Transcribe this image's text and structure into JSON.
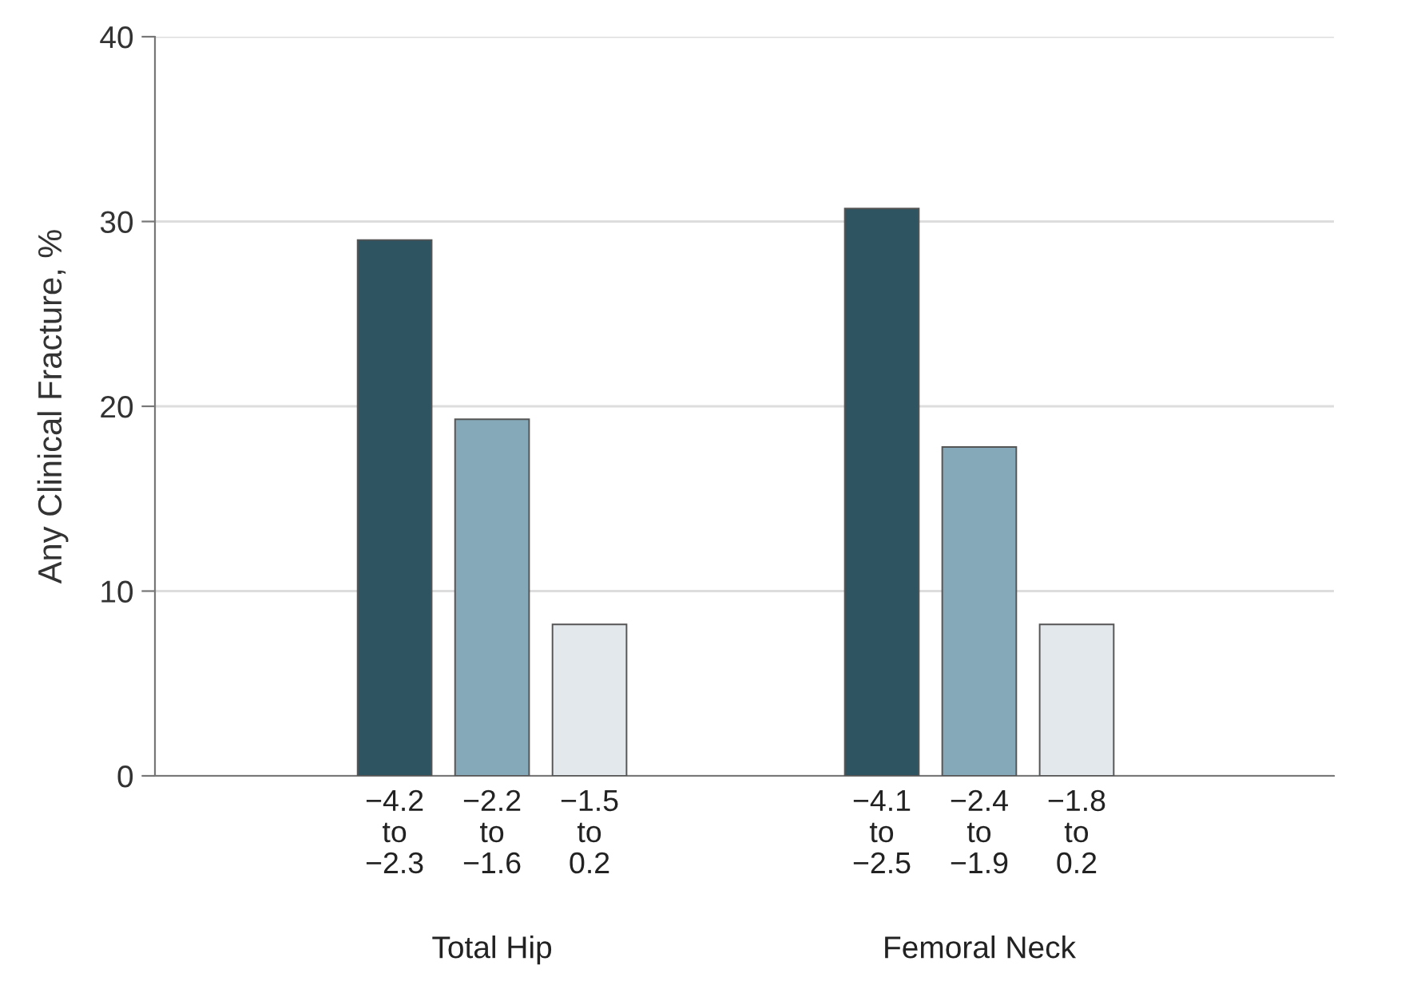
{
  "chart_data": {
    "type": "bar",
    "ylabel": "Any Clinical Fracture, %",
    "categories": [
      null,
      null,
      "−4.2\nto\n−2.3",
      "−2.2\nto\n−1.6",
      "−1.5\nto\n0.2",
      null,
      null,
      "−4.1\nto\n−2.5",
      "−2.4\nto\n−1.9",
      "−1.8\nto\n0.2",
      null,
      null
    ],
    "values": [
      null,
      null,
      29.0,
      19.3,
      8.2,
      null,
      null,
      30.7,
      17.8,
      8.2,
      null,
      null
    ],
    "colors": [
      "#2e5461",
      "#2e5461",
      "#2e5461",
      "#86a9b9",
      "#e3e8ec",
      "#2e5461",
      "#2e5461",
      "#2e5461",
      "#86a9b9",
      "#e3e8ec",
      "#2e5461",
      "#2e5461"
    ],
    "annotations": [
      "Total Hip",
      "Femoral Neck"
    ],
    "ylim": [
      0,
      40
    ],
    "yticks": [
      0,
      10,
      20,
      30,
      40
    ],
    "grid": "y",
    "legend": false
  }
}
